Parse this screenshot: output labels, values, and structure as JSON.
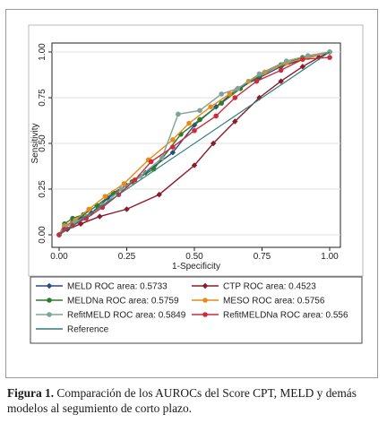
{
  "chart_data": {
    "type": "line",
    "xlabel": "1-Specificity",
    "ylabel": "Sensitivity",
    "xlim": [
      0,
      1
    ],
    "ylim": [
      0,
      1
    ],
    "x_ticks": [
      "0.00",
      "0.25",
      "0.50",
      "0.75",
      "1.00"
    ],
    "y_ticks": [
      "0.00",
      "0.25",
      "0.50",
      "0.75",
      "1.00"
    ],
    "legend_position": "bottom",
    "series": [
      {
        "name": "MELD ROC area: 0.5733",
        "color": "#2b4a7a",
        "marker": "diamond",
        "points": [
          [
            0,
            0
          ],
          [
            0.02,
            0.05
          ],
          [
            0.05,
            0.07
          ],
          [
            0.08,
            0.09
          ],
          [
            0.12,
            0.12
          ],
          [
            0.18,
            0.2
          ],
          [
            0.25,
            0.27
          ],
          [
            0.32,
            0.34
          ],
          [
            0.42,
            0.45
          ],
          [
            0.5,
            0.6
          ],
          [
            0.58,
            0.7
          ],
          [
            0.66,
            0.8
          ],
          [
            0.74,
            0.86
          ],
          [
            0.82,
            0.92
          ],
          [
            0.9,
            0.96
          ],
          [
            1,
            1
          ]
        ]
      },
      {
        "name": "CTP ROC area: 0.4523",
        "color": "#8b1a2a",
        "marker": "diamond",
        "points": [
          [
            0,
            0
          ],
          [
            0.03,
            0.03
          ],
          [
            0.08,
            0.06
          ],
          [
            0.15,
            0.1
          ],
          [
            0.25,
            0.14
          ],
          [
            0.37,
            0.22
          ],
          [
            0.5,
            0.38
          ],
          [
            0.57,
            0.5
          ],
          [
            0.65,
            0.62
          ],
          [
            0.74,
            0.75
          ],
          [
            0.82,
            0.84
          ],
          [
            0.9,
            0.92
          ],
          [
            0.96,
            0.97
          ],
          [
            1,
            1
          ]
        ]
      },
      {
        "name": "MELDNa ROC area: 0.5759",
        "color": "#2f7a2f",
        "marker": "circle",
        "points": [
          [
            0,
            0
          ],
          [
            0.02,
            0.06
          ],
          [
            0.05,
            0.09
          ],
          [
            0.09,
            0.11
          ],
          [
            0.14,
            0.16
          ],
          [
            0.2,
            0.23
          ],
          [
            0.27,
            0.29
          ],
          [
            0.35,
            0.36
          ],
          [
            0.45,
            0.55
          ],
          [
            0.52,
            0.63
          ],
          [
            0.6,
            0.72
          ],
          [
            0.67,
            0.8
          ],
          [
            0.74,
            0.87
          ],
          [
            0.82,
            0.93
          ],
          [
            0.9,
            0.97
          ],
          [
            1,
            1
          ]
        ]
      },
      {
        "name": "MESO ROC area: 0.5756",
        "color": "#e8891c",
        "marker": "circle",
        "points": [
          [
            0,
            0
          ],
          [
            0.02,
            0.05
          ],
          [
            0.06,
            0.08
          ],
          [
            0.11,
            0.14
          ],
          [
            0.17,
            0.21
          ],
          [
            0.24,
            0.28
          ],
          [
            0.33,
            0.41
          ],
          [
            0.42,
            0.52
          ],
          [
            0.48,
            0.61
          ],
          [
            0.56,
            0.7
          ],
          [
            0.63,
            0.77
          ],
          [
            0.7,
            0.84
          ],
          [
            0.76,
            0.89
          ],
          [
            0.84,
            0.94
          ],
          [
            0.92,
            0.97
          ],
          [
            1,
            1
          ]
        ]
      },
      {
        "name": "RefitMELD ROC area: 0.5849",
        "color": "#7fa39a",
        "marker": "circle",
        "points": [
          [
            0,
            0
          ],
          [
            0.02,
            0.04
          ],
          [
            0.06,
            0.07
          ],
          [
            0.1,
            0.1
          ],
          [
            0.16,
            0.16
          ],
          [
            0.23,
            0.25
          ],
          [
            0.3,
            0.32
          ],
          [
            0.38,
            0.42
          ],
          [
            0.44,
            0.66
          ],
          [
            0.52,
            0.68
          ],
          [
            0.6,
            0.77
          ],
          [
            0.66,
            0.8
          ],
          [
            0.74,
            0.88
          ],
          [
            0.84,
            0.95
          ],
          [
            0.92,
            0.98
          ],
          [
            1,
            1
          ]
        ]
      },
      {
        "name": "RefitMELDNa ROC area: 0.556",
        "color": "#cc2b3a",
        "marker": "circle",
        "points": [
          [
            0,
            0
          ],
          [
            0.02,
            0.03
          ],
          [
            0.05,
            0.05
          ],
          [
            0.1,
            0.09
          ],
          [
            0.16,
            0.15
          ],
          [
            0.22,
            0.22
          ],
          [
            0.28,
            0.3
          ],
          [
            0.34,
            0.4
          ],
          [
            0.42,
            0.48
          ],
          [
            0.5,
            0.57
          ],
          [
            0.58,
            0.65
          ],
          [
            0.65,
            0.75
          ],
          [
            0.73,
            0.84
          ],
          [
            0.82,
            0.9
          ],
          [
            0.9,
            0.96
          ],
          [
            1,
            0.97
          ]
        ]
      },
      {
        "name": "Reference",
        "color": "#2f7d7a",
        "marker": "none",
        "points": [
          [
            0,
            0
          ],
          [
            1,
            1
          ]
        ]
      }
    ]
  },
  "caption": {
    "label": "Figura 1.",
    "text": " Comparación de los AUROCs del Score CPT, MELD y demás modelos al segumiento de corto plazo."
  }
}
